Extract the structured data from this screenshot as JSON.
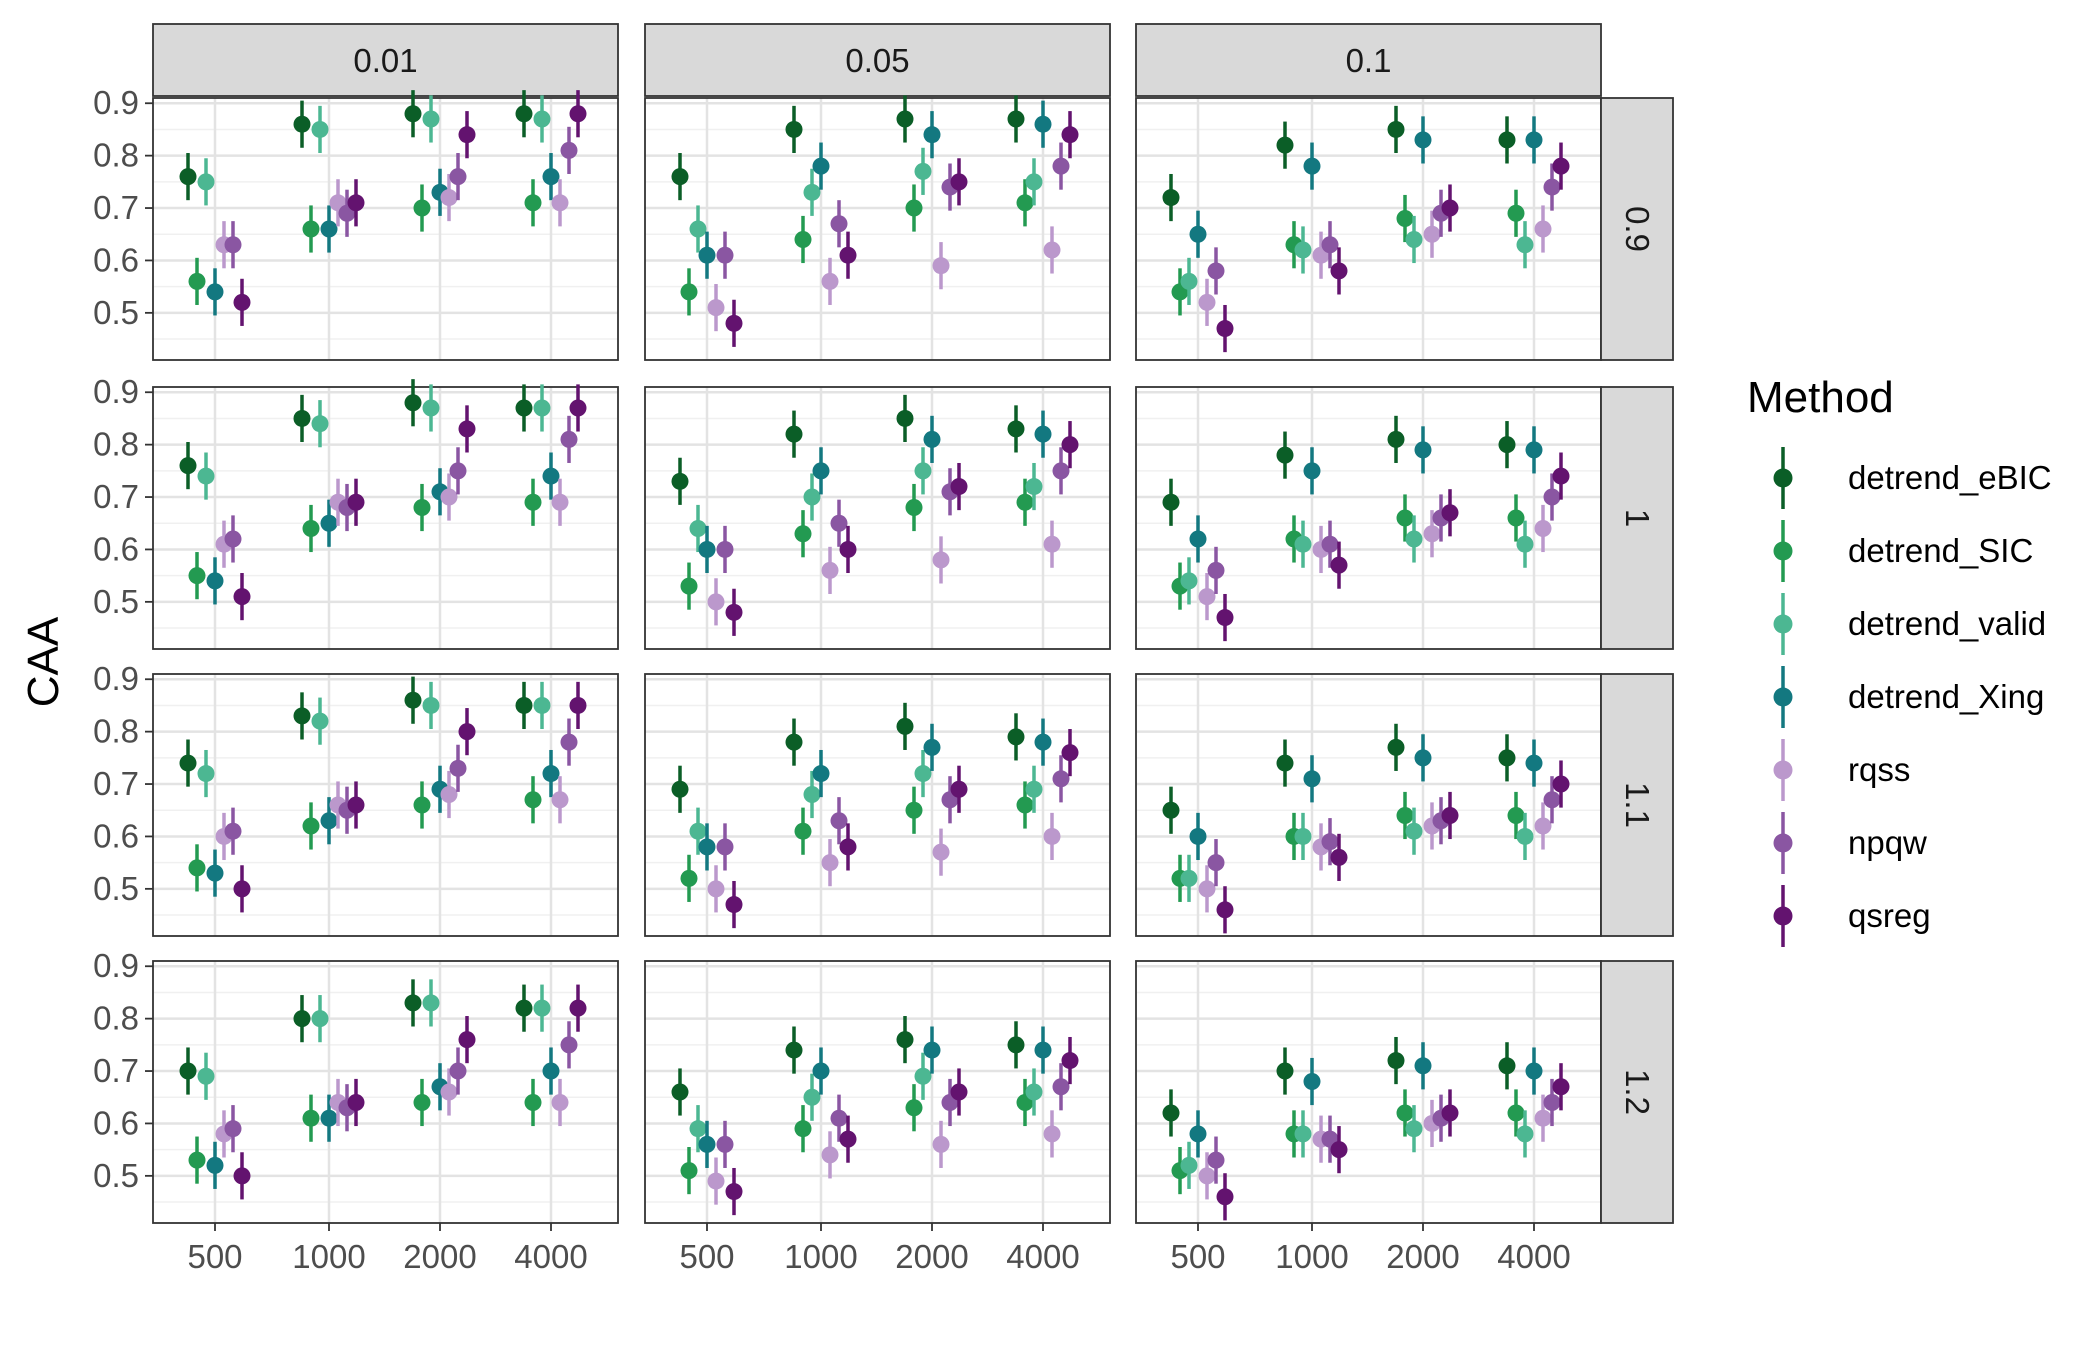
{
  "chart_data": {
    "type": "scatter",
    "subtype": "point-range (mean with error bars), faceted grid",
    "title": "",
    "xlabel": "",
    "ylabel": "CAA",
    "x_categories": [
      "500",
      "1000",
      "2000",
      "4000"
    ],
    "y_ticks": [
      "0.5",
      "0.6",
      "0.7",
      "0.8",
      "0.9"
    ],
    "ylim": [
      0.41,
      0.91
    ],
    "grid": true,
    "col_facets": [
      "0.01",
      "0.05",
      "0.1"
    ],
    "row_facets": [
      "0.9",
      "1",
      "1.1",
      "1.2"
    ],
    "legend": {
      "title": "Method",
      "position": "right",
      "entries": [
        "detrend_eBIC",
        "detrend_SIC",
        "detrend_valid",
        "detrend_Xing",
        "rqss",
        "npqw",
        "qsreg"
      ]
    },
    "series": [
      {
        "name": "detrend_eBIC",
        "color": "#0b5e27"
      },
      {
        "name": "detrend_SIC",
        "color": "#239a51"
      },
      {
        "name": "detrend_valid",
        "color": "#4cb792"
      },
      {
        "name": "detrend_Xing",
        "color": "#137880"
      },
      {
        "name": "rqss",
        "color": "#bb98cc"
      },
      {
        "name": "npqw",
        "color": "#8a56a2"
      },
      {
        "name": "qsreg",
        "color": "#63136f"
      }
    ],
    "panels": [
      {
        "col": "0.01",
        "row": "0.9",
        "values": [
          [
            0.76,
            0.86,
            0.88,
            0.88
          ],
          [
            0.56,
            0.66,
            0.7,
            0.71
          ],
          [
            0.75,
            0.85,
            0.87,
            0.87
          ],
          [
            0.54,
            0.66,
            0.73,
            0.76
          ],
          [
            0.63,
            0.71,
            0.72,
            0.71
          ],
          [
            0.63,
            0.69,
            0.76,
            0.81
          ],
          [
            0.52,
            0.71,
            0.84,
            0.88
          ]
        ]
      },
      {
        "col": "0.05",
        "row": "0.9",
        "values": [
          [
            0.76,
            0.85,
            0.87,
            0.87
          ],
          [
            0.54,
            0.64,
            0.7,
            0.71
          ],
          [
            0.66,
            0.73,
            0.77,
            0.75
          ],
          [
            0.61,
            0.78,
            0.84,
            0.86
          ],
          [
            0.51,
            0.56,
            0.59,
            0.62
          ],
          [
            0.61,
            0.67,
            0.74,
            0.78
          ],
          [
            0.48,
            0.61,
            0.75,
            0.84
          ]
        ]
      },
      {
        "col": "0.1",
        "row": "0.9",
        "values": [
          [
            0.72,
            0.82,
            0.85,
            0.83
          ],
          [
            0.54,
            0.63,
            0.68,
            0.69
          ],
          [
            0.56,
            0.62,
            0.64,
            0.63
          ],
          [
            0.65,
            0.78,
            0.83,
            0.83
          ],
          [
            0.52,
            0.61,
            0.65,
            0.66
          ],
          [
            0.58,
            0.63,
            0.69,
            0.74
          ],
          [
            0.47,
            0.58,
            0.7,
            0.78
          ]
        ]
      },
      {
        "col": "0.01",
        "row": "1",
        "values": [
          [
            0.76,
            0.85,
            0.88,
            0.87
          ],
          [
            0.55,
            0.64,
            0.68,
            0.69
          ],
          [
            0.74,
            0.84,
            0.87,
            0.87
          ],
          [
            0.54,
            0.65,
            0.71,
            0.74
          ],
          [
            0.61,
            0.69,
            0.7,
            0.69
          ],
          [
            0.62,
            0.68,
            0.75,
            0.81
          ],
          [
            0.51,
            0.69,
            0.83,
            0.87
          ]
        ]
      },
      {
        "col": "0.05",
        "row": "1",
        "values": [
          [
            0.73,
            0.82,
            0.85,
            0.83
          ],
          [
            0.53,
            0.63,
            0.68,
            0.69
          ],
          [
            0.64,
            0.7,
            0.75,
            0.72
          ],
          [
            0.6,
            0.75,
            0.81,
            0.82
          ],
          [
            0.5,
            0.56,
            0.58,
            0.61
          ],
          [
            0.6,
            0.65,
            0.71,
            0.75
          ],
          [
            0.48,
            0.6,
            0.72,
            0.8
          ]
        ]
      },
      {
        "col": "0.1",
        "row": "1",
        "values": [
          [
            0.69,
            0.78,
            0.81,
            0.8
          ],
          [
            0.53,
            0.62,
            0.66,
            0.66
          ],
          [
            0.54,
            0.61,
            0.62,
            0.61
          ],
          [
            0.62,
            0.75,
            0.79,
            0.79
          ],
          [
            0.51,
            0.6,
            0.63,
            0.64
          ],
          [
            0.56,
            0.61,
            0.66,
            0.7
          ],
          [
            0.47,
            0.57,
            0.67,
            0.74
          ]
        ]
      },
      {
        "col": "0.01",
        "row": "1.1",
        "values": [
          [
            0.74,
            0.83,
            0.86,
            0.85
          ],
          [
            0.54,
            0.62,
            0.66,
            0.67
          ],
          [
            0.72,
            0.82,
            0.85,
            0.85
          ],
          [
            0.53,
            0.63,
            0.69,
            0.72
          ],
          [
            0.6,
            0.66,
            0.68,
            0.67
          ],
          [
            0.61,
            0.65,
            0.73,
            0.78
          ],
          [
            0.5,
            0.66,
            0.8,
            0.85
          ]
        ]
      },
      {
        "col": "0.05",
        "row": "1.1",
        "values": [
          [
            0.69,
            0.78,
            0.81,
            0.79
          ],
          [
            0.52,
            0.61,
            0.65,
            0.66
          ],
          [
            0.61,
            0.68,
            0.72,
            0.69
          ],
          [
            0.58,
            0.72,
            0.77,
            0.78
          ],
          [
            0.5,
            0.55,
            0.57,
            0.6
          ],
          [
            0.58,
            0.63,
            0.67,
            0.71
          ],
          [
            0.47,
            0.58,
            0.69,
            0.76
          ]
        ]
      },
      {
        "col": "0.1",
        "row": "1.1",
        "values": [
          [
            0.65,
            0.74,
            0.77,
            0.75
          ],
          [
            0.52,
            0.6,
            0.64,
            0.64
          ],
          [
            0.52,
            0.6,
            0.61,
            0.6
          ],
          [
            0.6,
            0.71,
            0.75,
            0.74
          ],
          [
            0.5,
            0.58,
            0.62,
            0.62
          ],
          [
            0.55,
            0.59,
            0.63,
            0.67
          ],
          [
            0.46,
            0.56,
            0.64,
            0.7
          ]
        ]
      },
      {
        "col": "0.01",
        "row": "1.2",
        "values": [
          [
            0.7,
            0.8,
            0.83,
            0.82
          ],
          [
            0.53,
            0.61,
            0.64,
            0.64
          ],
          [
            0.69,
            0.8,
            0.83,
            0.82
          ],
          [
            0.52,
            0.61,
            0.67,
            0.7
          ],
          [
            0.58,
            0.64,
            0.66,
            0.64
          ],
          [
            0.59,
            0.63,
            0.7,
            0.75
          ],
          [
            0.5,
            0.64,
            0.76,
            0.82
          ]
        ]
      },
      {
        "col": "0.05",
        "row": "1.2",
        "values": [
          [
            0.66,
            0.74,
            0.76,
            0.75
          ],
          [
            0.51,
            0.59,
            0.63,
            0.64
          ],
          [
            0.59,
            0.65,
            0.69,
            0.66
          ],
          [
            0.56,
            0.7,
            0.74,
            0.74
          ],
          [
            0.49,
            0.54,
            0.56,
            0.58
          ],
          [
            0.56,
            0.61,
            0.64,
            0.67
          ],
          [
            0.47,
            0.57,
            0.66,
            0.72
          ]
        ]
      },
      {
        "col": "0.1",
        "row": "1.2",
        "values": [
          [
            0.62,
            0.7,
            0.72,
            0.71
          ],
          [
            0.51,
            0.58,
            0.62,
            0.62
          ],
          [
            0.52,
            0.58,
            0.59,
            0.58
          ],
          [
            0.58,
            0.68,
            0.71,
            0.7
          ],
          [
            0.5,
            0.57,
            0.6,
            0.61
          ],
          [
            0.53,
            0.57,
            0.61,
            0.64
          ],
          [
            0.46,
            0.55,
            0.62,
            0.67
          ]
        ]
      }
    ]
  }
}
